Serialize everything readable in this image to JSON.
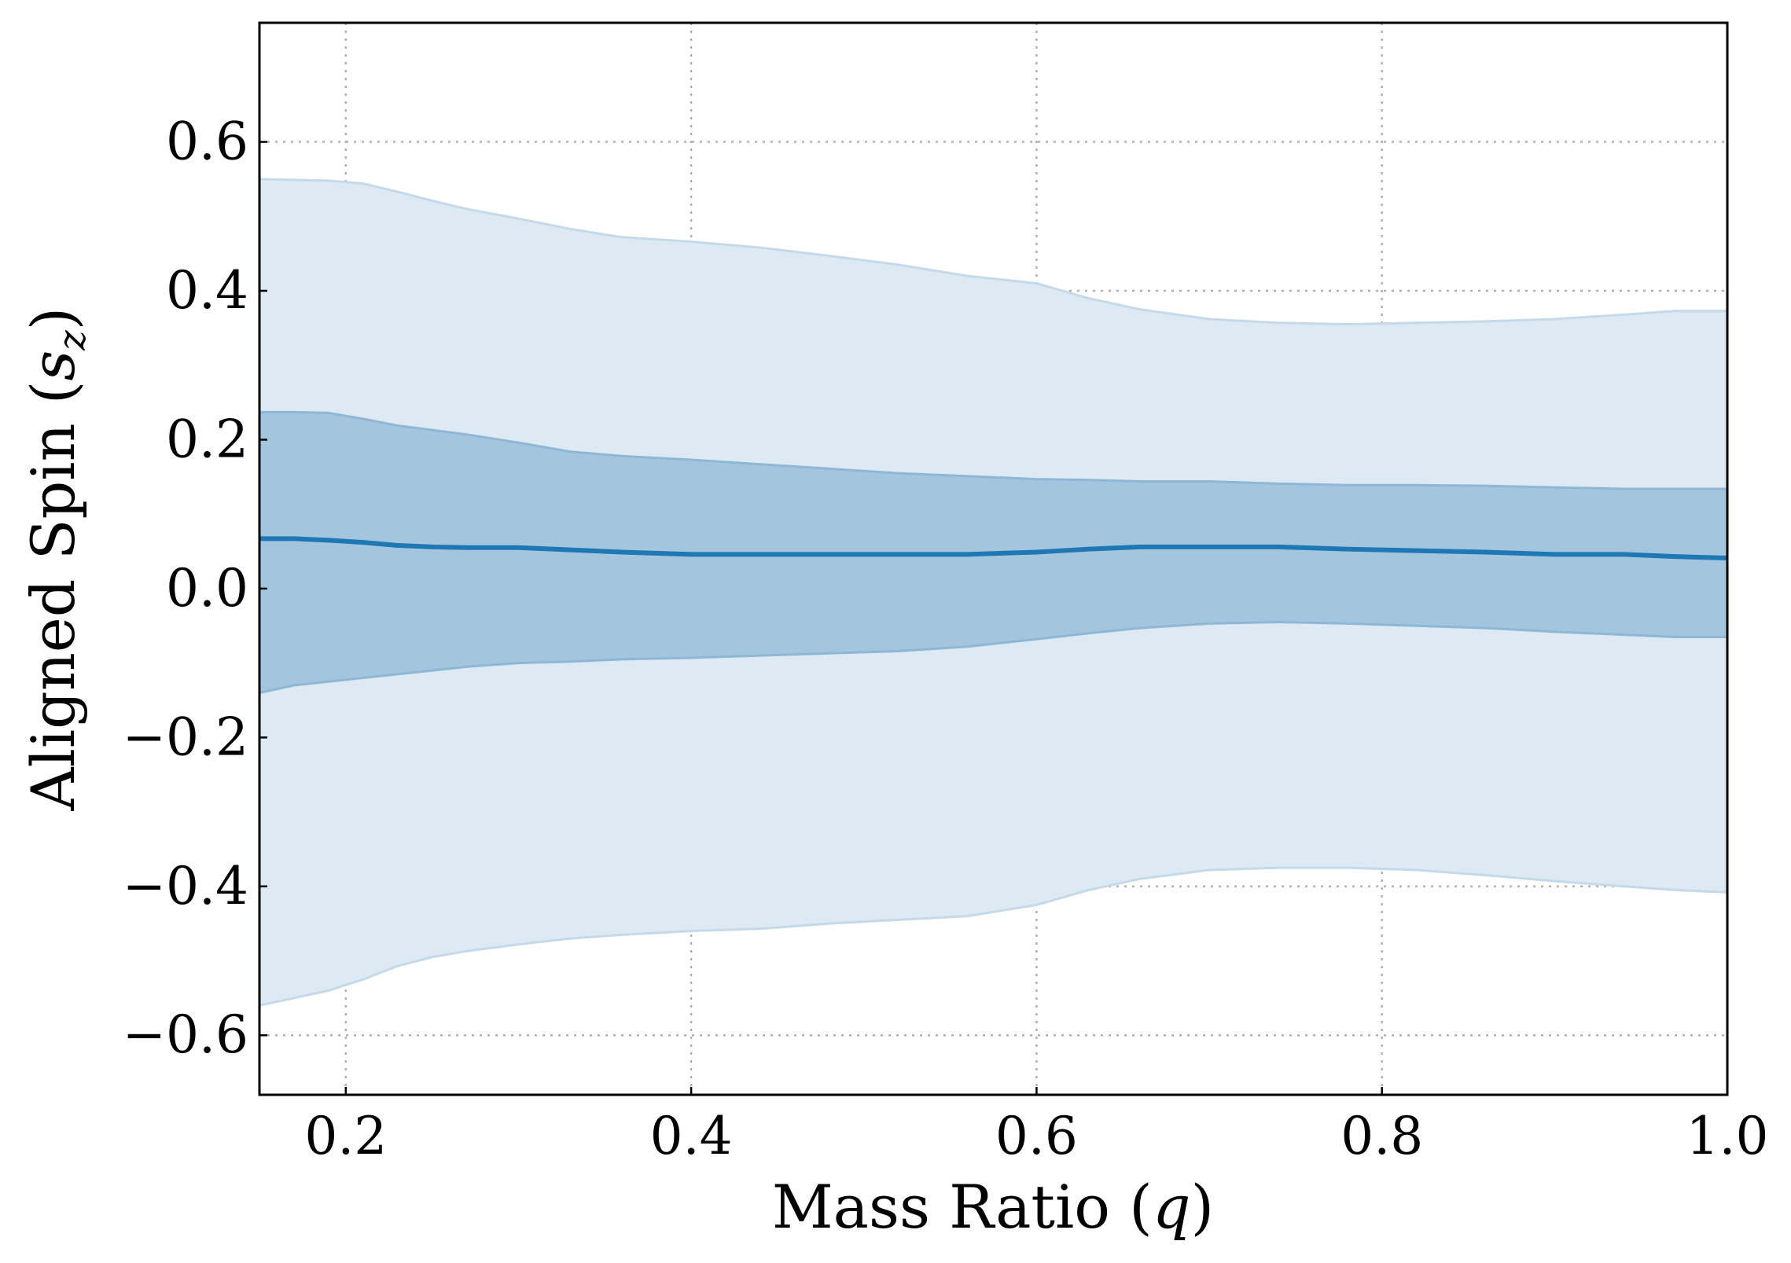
{
  "chart_data": {
    "type": "area",
    "xlabel": "Mass Ratio ($q$)",
    "ylabel": "Aligned Spin ($s_z$)",
    "xlabel_parts": {
      "text": "Mass Ratio (",
      "var": "q",
      "close": ")"
    },
    "ylabel_parts": {
      "text": "Aligned Spin (",
      "var": "s",
      "sub": "z",
      "close": ")"
    },
    "xlim": [
      0.15,
      1.0
    ],
    "ylim": [
      -0.68,
      0.76
    ],
    "xticks": [
      0.2,
      0.4,
      0.6,
      0.8,
      1.0
    ],
    "xtick_labels": [
      "0.2",
      "0.4",
      "0.6",
      "0.8",
      "1.0"
    ],
    "yticks": [
      -0.6,
      -0.4,
      -0.2,
      0.0,
      0.2,
      0.4,
      0.6
    ],
    "ytick_labels": [
      "−0.6",
      "−0.4",
      "−0.2",
      "0.0",
      "0.2",
      "0.4",
      "0.6"
    ],
    "grid": true,
    "legend": "none",
    "colors": {
      "line": "#1f77b4",
      "band_inner": "#a3c6de",
      "band_outer": "#dde9f3"
    },
    "x": [
      0.15,
      0.17,
      0.19,
      0.21,
      0.23,
      0.25,
      0.27,
      0.3,
      0.33,
      0.36,
      0.4,
      0.44,
      0.48,
      0.52,
      0.56,
      0.6,
      0.63,
      0.66,
      0.7,
      0.74,
      0.78,
      0.82,
      0.86,
      0.9,
      0.94,
      0.97,
      1.0
    ],
    "series": [
      {
        "stat": "median",
        "values": [
          0.067,
          0.067,
          0.065,
          0.062,
          0.058,
          0.056,
          0.055,
          0.055,
          0.052,
          0.049,
          0.046,
          0.046,
          0.046,
          0.046,
          0.046,
          0.049,
          0.053,
          0.056,
          0.056,
          0.056,
          0.053,
          0.051,
          0.049,
          0.046,
          0.046,
          0.043,
          0.041
        ]
      },
      {
        "stat": "inner_band",
        "lower": [
          -0.14,
          -0.13,
          -0.125,
          -0.12,
          -0.115,
          -0.11,
          -0.105,
          -0.1,
          -0.098,
          -0.095,
          -0.093,
          -0.09,
          -0.087,
          -0.084,
          -0.078,
          -0.068,
          -0.06,
          -0.053,
          -0.047,
          -0.045,
          -0.047,
          -0.05,
          -0.053,
          -0.058,
          -0.062,
          -0.065,
          -0.065
        ],
        "upper": [
          0.237,
          0.237,
          0.236,
          0.228,
          0.219,
          0.213,
          0.207,
          0.196,
          0.184,
          0.178,
          0.173,
          0.167,
          0.161,
          0.155,
          0.151,
          0.147,
          0.146,
          0.144,
          0.144,
          0.141,
          0.139,
          0.139,
          0.138,
          0.136,
          0.134,
          0.134,
          0.134
        ]
      },
      {
        "stat": "outer_band",
        "lower": [
          -0.56,
          -0.55,
          -0.54,
          -0.525,
          -0.507,
          -0.495,
          -0.487,
          -0.478,
          -0.47,
          -0.465,
          -0.46,
          -0.457,
          -0.45,
          -0.445,
          -0.44,
          -0.425,
          -0.405,
          -0.39,
          -0.378,
          -0.375,
          -0.375,
          -0.378,
          -0.385,
          -0.393,
          -0.4,
          -0.405,
          -0.408
        ],
        "upper": [
          0.55,
          0.549,
          0.548,
          0.544,
          0.533,
          0.521,
          0.51,
          0.497,
          0.483,
          0.472,
          0.466,
          0.458,
          0.447,
          0.435,
          0.42,
          0.41,
          0.39,
          0.375,
          0.362,
          0.357,
          0.355,
          0.357,
          0.359,
          0.362,
          0.368,
          0.373,
          0.373
        ]
      }
    ]
  }
}
